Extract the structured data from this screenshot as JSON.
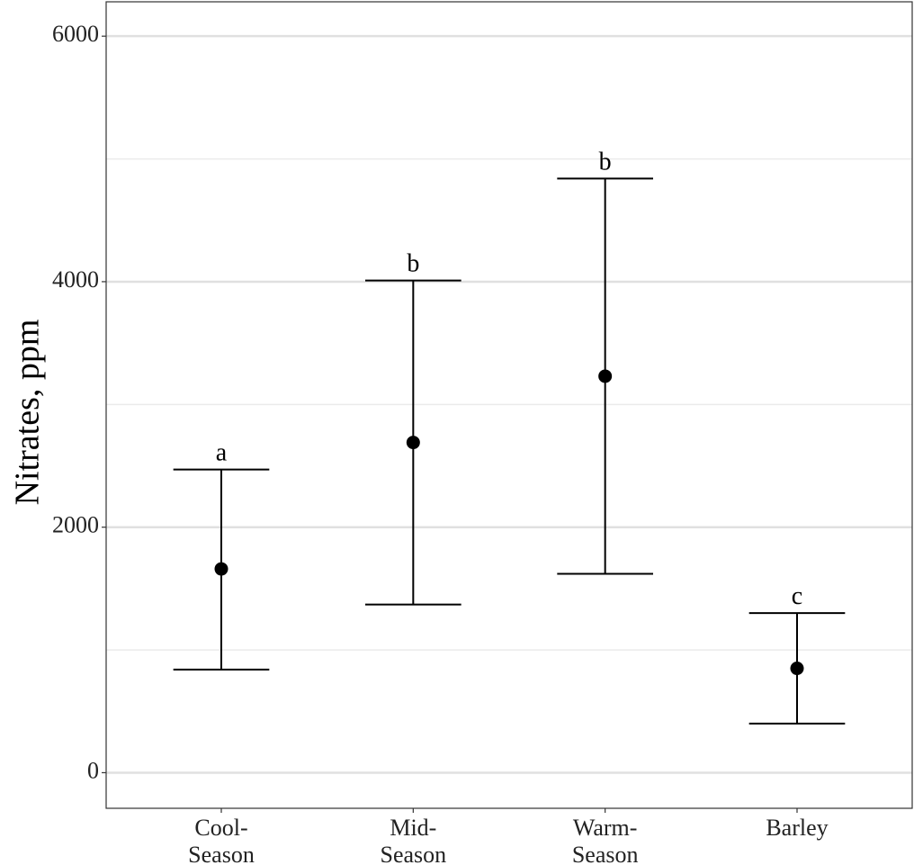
{
  "chart_data": {
    "type": "errorbar",
    "y_label": "Nitrates, ppm",
    "categories": [
      "Cool-\nSeason",
      "Mid-\nSeason",
      "Warm-\nSeason",
      "Barley"
    ],
    "values": [
      1660,
      2690,
      3230,
      850
    ],
    "lower": [
      840,
      1370,
      1620,
      400
    ],
    "upper": [
      2470,
      4010,
      4840,
      1300
    ],
    "annotations": [
      "a",
      "b",
      "b",
      "c"
    ],
    "color": "#000000",
    "ylim": [
      -290,
      6280
    ],
    "yticks": [
      0,
      2000,
      4000,
      6000
    ],
    "minor_grid": [
      1000,
      3000,
      5000
    ],
    "grid": true
  }
}
